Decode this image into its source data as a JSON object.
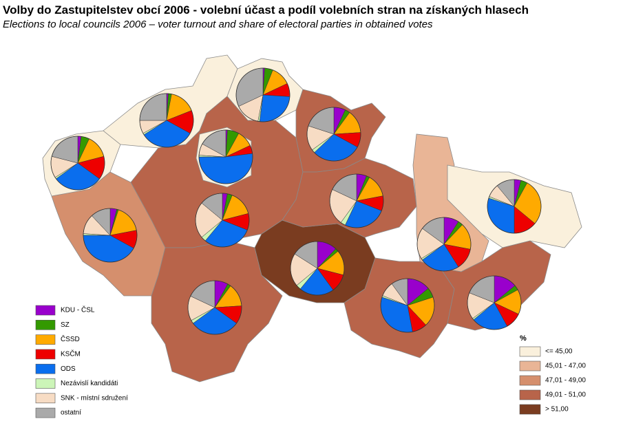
{
  "title": "Volby do Zastupitelstev obcí 2006 - volební účast a podíl volebních stran na získaných hlasech",
  "subtitle": "Elections to local councils 2006 – voter turnout and share of electoral parties in obtained votes",
  "parties": [
    {
      "name": "KDU - ČSL",
      "color": "#9900cc"
    },
    {
      "name": "SZ",
      "color": "#339900"
    },
    {
      "name": "ČSSD",
      "color": "#ffaa00"
    },
    {
      "name": "KSČM",
      "color": "#ee0000"
    },
    {
      "name": "ODS",
      "color": "#0a6eee"
    },
    {
      "name": "Nezávislí kandidáti",
      "color": "#ccf5b8"
    },
    {
      "name": "SNK - místní sdružení",
      "color": "#f7dcc4"
    },
    {
      "name": "ostatní",
      "color": "#aaaaaa"
    }
  ],
  "turnout_legend": {
    "title": "%",
    "classes": [
      {
        "label": "<= 45,00",
        "color": "#faf0dc"
      },
      {
        "label": "45,01 - 47,00",
        "color": "#e9b596"
      },
      {
        "label": "47,01 - 49,00",
        "color": "#d58f6d"
      },
      {
        "label": "49,01 - 51,00",
        "color": "#b8644a"
      },
      {
        "label": "> 51,00",
        "color": "#7a3c20"
      }
    ]
  },
  "regions": [
    {
      "fill": "#faf0dc",
      "shares": [
        2,
        5,
        14,
        14,
        30,
        1,
        13,
        21
      ]
    },
    {
      "fill": "#faf0dc",
      "shares": [
        1,
        2,
        16,
        14,
        33,
        1,
        8,
        25
      ]
    },
    {
      "fill": "#faf0dc",
      "shares": [
        1,
        5,
        12,
        8,
        26,
        1,
        15,
        32
      ]
    },
    {
      "fill": "#b8644a",
      "shares": [
        3,
        3,
        15,
        10,
        30,
        3,
        22,
        14
      ]
    },
    {
      "fill": "#faf0dc",
      "shares": [
        1,
        7,
        10,
        5,
        52,
        1,
        7,
        17
      ]
    },
    {
      "fill": "#d58f6d",
      "shares": [
        4,
        1,
        17,
        11,
        42,
        1,
        12,
        12
      ]
    },
    {
      "fill": "#b8644a",
      "shares": [
        8,
        2,
        14,
        11,
        30,
        2,
        15,
        18
      ]
    },
    {
      "fill": "#7a3c20",
      "shares": [
        12,
        2,
        15,
        11,
        21,
        3,
        20,
        16
      ]
    },
    {
      "fill": "#b8644a",
      "shares": [
        7,
        3,
        14,
        9,
        30,
        2,
        15,
        20
      ]
    },
    {
      "fill": "#b8644a",
      "shares": [
        6,
        2,
        14,
        9,
        26,
        3,
        22,
        18
      ]
    },
    {
      "fill": "#e9b596",
      "shares": [
        9,
        3,
        16,
        13,
        24,
        1,
        19,
        15
      ]
    },
    {
      "fill": "#faf0dc",
      "shares": [
        4,
        4,
        28,
        14,
        30,
        1,
        8,
        11
      ]
    },
    {
      "fill": "#b8644a",
      "shares": [
        14,
        6,
        18,
        9,
        33,
        1,
        9,
        10
      ]
    },
    {
      "fill": "#b8644a",
      "shares": [
        14,
        3,
        15,
        10,
        22,
        1,
        16,
        19
      ]
    }
  ]
}
